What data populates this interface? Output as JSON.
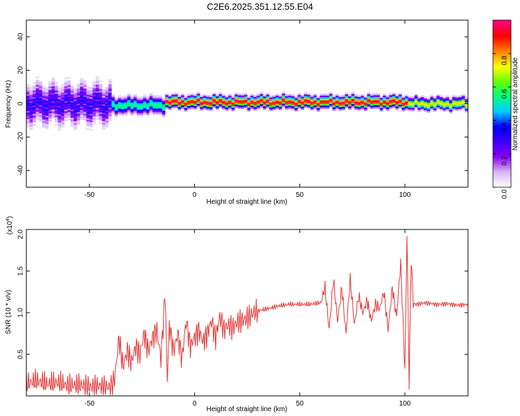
{
  "title": "C2E6.2025.351.12.55.E04",
  "colors": {
    "snr_line": "#e53333",
    "axis": "#000000"
  },
  "chart_data": [
    {
      "type": "heatmap",
      "name": "spectrogram",
      "xlabel": "Height of straight line (km)",
      "ylabel": "Frequency (Hz)",
      "xlim": [
        -80,
        130
      ],
      "ylim": [
        -50,
        50
      ],
      "xticks": [
        -50,
        0,
        50,
        100
      ],
      "yticks": [
        40,
        20,
        0,
        -20,
        -40
      ],
      "colorbar": {
        "label": "Normalized spectral amplitude",
        "range": [
          0.0,
          1.0
        ],
        "ticks": [
          "0.0",
          "0.2",
          "0.4",
          "0.6",
          "0.8"
        ],
        "tick_values": [
          0.0,
          0.2,
          0.4,
          0.6,
          0.8
        ],
        "colormap": [
          "#ffffff",
          "#d8b4f8",
          "#8a00ff",
          "#3b00ff",
          "#0000ff",
          "#00ccff",
          "#00ff80",
          "#66ff00",
          "#ffff00",
          "#ff8000",
          "#ff0000",
          "#ff0080"
        ]
      },
      "bands": [
        {
          "x": [
            -80,
            -40
          ],
          "center": 0,
          "halfwidth": 10,
          "peak": 0.35
        },
        {
          "x": [
            -40,
            -15
          ],
          "center": -1,
          "halfwidth": 4,
          "peak": 0.55
        },
        {
          "x": [
            -15,
            100
          ],
          "center": 1,
          "halfwidth": 3,
          "peak": 0.95
        },
        {
          "x": [
            100,
            130
          ],
          "center": 0,
          "halfwidth": 3,
          "peak": 0.75
        }
      ]
    },
    {
      "type": "line",
      "name": "snr",
      "xlabel": "Height of straight line (km)",
      "ylabel": "SNR (10 * v/v)",
      "ymultiplier": "(x10",
      "ymultiplier_exp": "4",
      "ymultiplier_close": ")",
      "xlim": [
        -80,
        130
      ],
      "ylim": [
        0,
        2.0
      ],
      "xticks": [
        -50,
        0,
        50,
        100
      ],
      "yticks": [
        0.5,
        1.0,
        1.5,
        2.0
      ],
      "ytick_labels": [
        "0.5",
        "1.0",
        "1.5",
        "2.0"
      ],
      "series": [
        {
          "name": "SNR",
          "x": [
            -80,
            -75,
            -70,
            -65,
            -60,
            -55,
            -50,
            -45,
            -40,
            -38,
            -36,
            -34,
            -32,
            -30,
            -28,
            -26,
            -24,
            -22,
            -20,
            -18,
            -16,
            -14,
            -13,
            -12,
            -10,
            -8,
            -6,
            -4,
            -2,
            0,
            2,
            4,
            6,
            8,
            10,
            12,
            14,
            16,
            18,
            20,
            22,
            24,
            26,
            28,
            30,
            35,
            40,
            45,
            50,
            55,
            60,
            62,
            64,
            66,
            68,
            70,
            72,
            74,
            76,
            78,
            80,
            82,
            84,
            86,
            88,
            90,
            92,
            94,
            96,
            98,
            100,
            101,
            102,
            103,
            104,
            105,
            110,
            115,
            120,
            125,
            130
          ],
          "y": [
            0.15,
            0.18,
            0.14,
            0.16,
            0.12,
            0.13,
            0.11,
            0.12,
            0.1,
            0.2,
            0.7,
            0.35,
            0.55,
            0.4,
            0.6,
            0.5,
            0.75,
            0.55,
            0.7,
            0.8,
            0.45,
            1.25,
            0.2,
            0.85,
            0.55,
            0.75,
            0.45,
            0.9,
            0.6,
            0.7,
            0.8,
            0.65,
            0.75,
            0.9,
            0.7,
            0.95,
            0.8,
            0.85,
            0.82,
            0.88,
            0.9,
            0.92,
            0.95,
            1.0,
            1.02,
            1.05,
            1.08,
            1.1,
            1.1,
            1.1,
            1.12,
            1.3,
            0.8,
            1.4,
            0.9,
            1.3,
            0.75,
            1.4,
            0.85,
            1.2,
            1.0,
            1.15,
            0.9,
            1.1,
            1.05,
            1.25,
            0.8,
            1.3,
            0.95,
            1.6,
            0.3,
            1.95,
            0.15,
            1.65,
            1.1,
            1.1,
            1.12,
            1.1,
            1.11,
            1.09,
            1.1
          ]
        }
      ]
    }
  ]
}
